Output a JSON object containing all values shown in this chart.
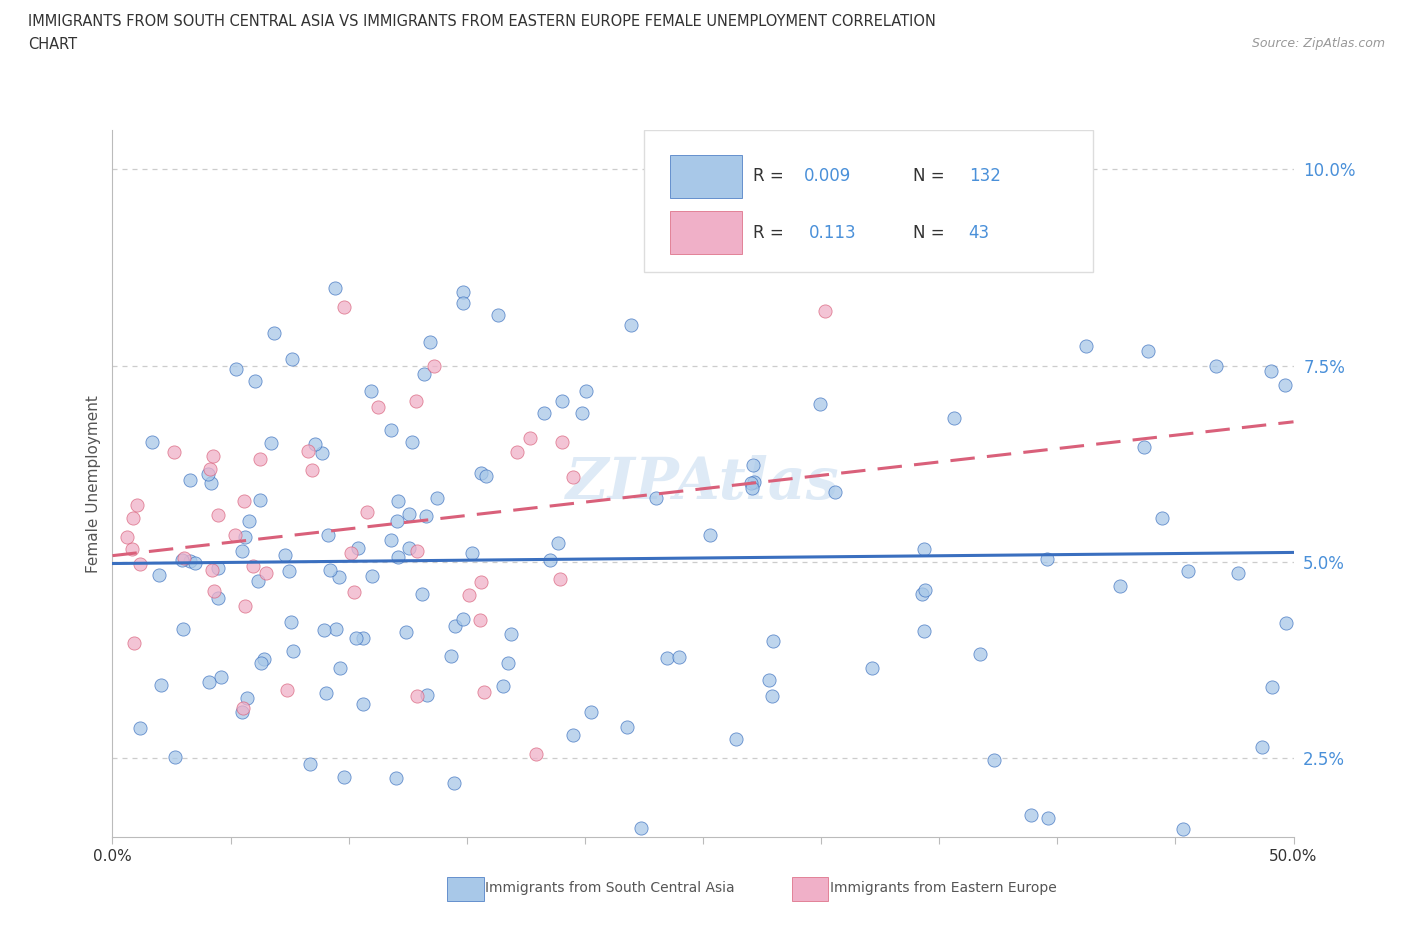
{
  "title_line1": "IMMIGRANTS FROM SOUTH CENTRAL ASIA VS IMMIGRANTS FROM EASTERN EUROPE FEMALE UNEMPLOYMENT CORRELATION",
  "title_line2": "CHART",
  "source": "Source: ZipAtlas.com",
  "ylabel": "Female Unemployment",
  "xlim": [
    0.0,
    0.5
  ],
  "ylim": [
    0.015,
    0.105
  ],
  "xtick_positions": [
    0.0,
    0.05,
    0.1,
    0.15,
    0.2,
    0.25,
    0.3,
    0.35,
    0.4,
    0.45,
    0.5
  ],
  "xtick_labels": [
    "0.0%",
    "",
    "",
    "",
    "",
    "",
    "",
    "",
    "",
    "",
    "50.0%"
  ],
  "ytick_positions": [
    0.025,
    0.05,
    0.075,
    0.1
  ],
  "ytick_labels": [
    "2.5%",
    "5.0%",
    "7.5%",
    "10.0%"
  ],
  "color_blue": "#a8c8e8",
  "color_pink": "#f0b0c8",
  "line_blue": "#3a6fbf",
  "line_pink": "#d9607a",
  "legend_text_color": "#4a90d9",
  "legend_label_color": "#333333",
  "ytick_color": "#4a90d9",
  "watermark_color": "#c8ddf0",
  "title_color": "#333333",
  "source_color": "#999999",
  "ylabel_color": "#555555",
  "grid_color": "#cccccc",
  "spine_color": "#bbbbbb",
  "legend_box_color": "#dddddd",
  "bottom_legend_text_color": "#555555",
  "seed_blue": 42,
  "seed_pink": 7,
  "n_blue": 132,
  "n_pink": 43
}
